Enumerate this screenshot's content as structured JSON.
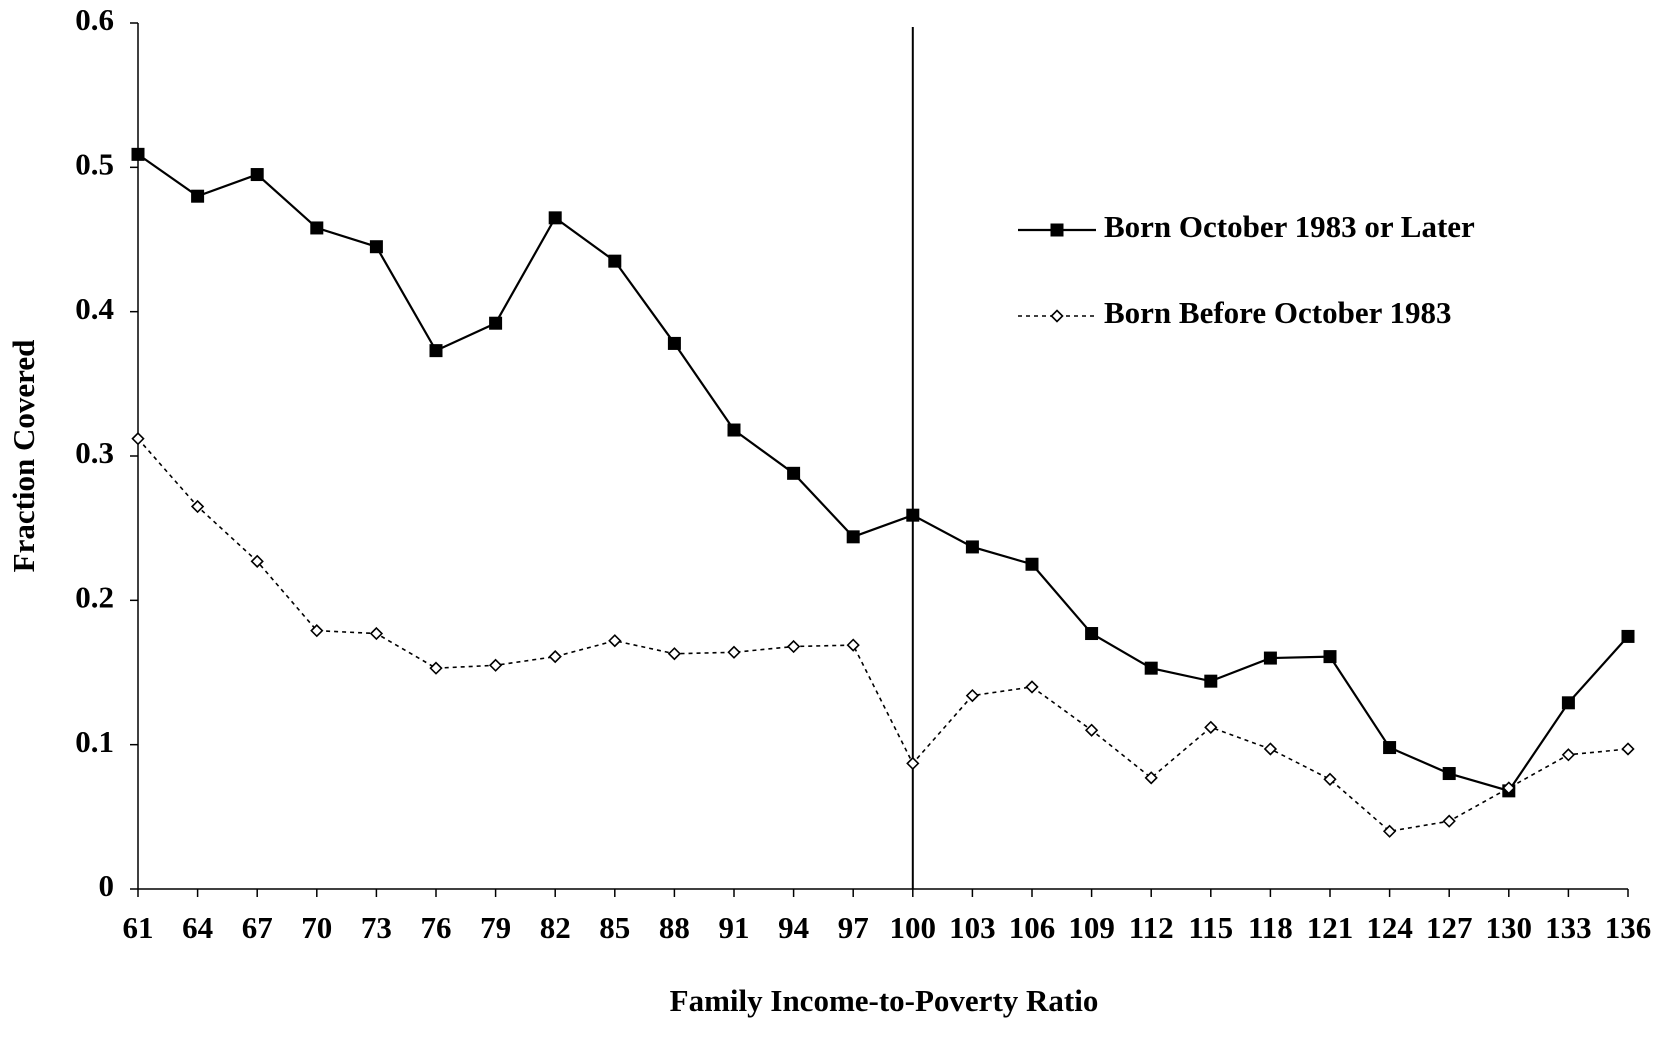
{
  "chart_data": {
    "type": "line",
    "x_label": "Family Income-to-Poverty Ratio",
    "y_label": "Fraction Covered",
    "x": [
      61,
      64,
      67,
      70,
      73,
      76,
      79,
      82,
      85,
      88,
      91,
      94,
      97,
      100,
      103,
      106,
      109,
      112,
      115,
      118,
      121,
      124,
      127,
      130,
      133,
      136
    ],
    "xlim": [
      61,
      136
    ],
    "xticks": [
      61,
      64,
      67,
      70,
      73,
      76,
      79,
      82,
      85,
      88,
      91,
      94,
      97,
      100,
      103,
      106,
      109,
      112,
      115,
      118,
      121,
      124,
      127,
      130,
      133,
      136
    ],
    "ylim": [
      0,
      0.6
    ],
    "yticks": [
      0,
      0.1,
      0.2,
      0.3,
      0.4,
      0.5,
      0.6
    ],
    "vline": 100,
    "grid": false,
    "legend_position": "upper right",
    "series": [
      {
        "name": "Born October 1983 or Later",
        "color": "#000000",
        "marker": "square",
        "line_style": "solid",
        "values": [
          0.509,
          0.48,
          0.495,
          0.458,
          0.445,
          0.373,
          0.392,
          0.465,
          0.435,
          0.378,
          0.318,
          0.288,
          0.244,
          0.259,
          0.237,
          0.225,
          0.177,
          0.153,
          0.144,
          0.16,
          0.161,
          0.098,
          0.08,
          0.068,
          0.129,
          0.175
        ]
      },
      {
        "name": "Born Before October 1983",
        "color": "#000000",
        "marker": "diamond",
        "line_style": "dotted",
        "values": [
          0.312,
          0.265,
          0.227,
          0.179,
          0.177,
          0.153,
          0.155,
          0.161,
          0.172,
          0.163,
          0.164,
          0.168,
          0.169,
          0.087,
          0.134,
          0.14,
          0.11,
          0.077,
          0.112,
          0.097,
          0.076,
          0.04,
          0.047,
          0.07,
          0.093,
          0.097
        ]
      }
    ]
  }
}
